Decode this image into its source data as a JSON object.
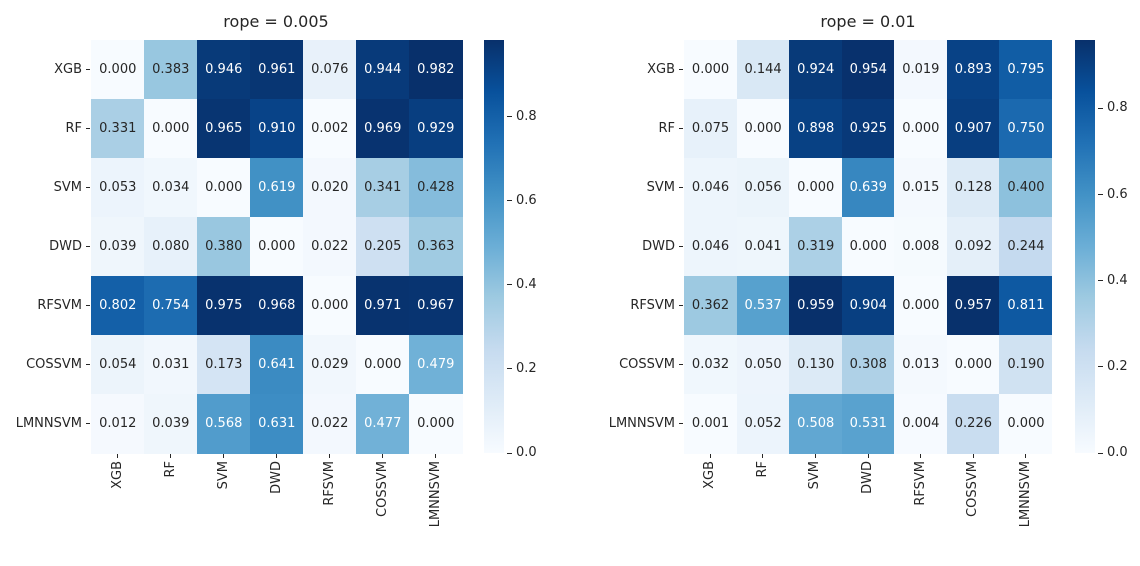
{
  "figure": {
    "background": "#ffffff",
    "colormap": {
      "name": "Blues",
      "stops": [
        "#f7fbff",
        "#deebf7",
        "#c6dbef",
        "#9ecae1",
        "#6baed6",
        "#4292c6",
        "#2171b5",
        "#08519c",
        "#08306b"
      ]
    },
    "colors": {
      "annotation_dark": "#262626",
      "annotation_light": "#ffffff",
      "tick_color": "#262626"
    }
  },
  "chart_data": [
    {
      "type": "heatmap",
      "title": "rope = 0.005",
      "x_categories": [
        "XGB",
        "RF",
        "SVM",
        "DWD",
        "RFSVM",
        "COSSVM",
        "LMNNSVM"
      ],
      "y_categories": [
        "XGB",
        "RF",
        "SVM",
        "DWD",
        "RFSVM",
        "COSSVM",
        "LMNNSVM"
      ],
      "values": [
        [
          0.0,
          0.383,
          0.946,
          0.961,
          0.076,
          0.944,
          0.982
        ],
        [
          0.331,
          0.0,
          0.965,
          0.91,
          0.002,
          0.969,
          0.929
        ],
        [
          0.053,
          0.034,
          0.0,
          0.619,
          0.02,
          0.341,
          0.428
        ],
        [
          0.039,
          0.08,
          0.38,
          0.0,
          0.022,
          0.205,
          0.363
        ],
        [
          0.802,
          0.754,
          0.975,
          0.968,
          0.0,
          0.971,
          0.967
        ],
        [
          0.054,
          0.031,
          0.173,
          0.641,
          0.029,
          0.0,
          0.479
        ],
        [
          0.012,
          0.039,
          0.568,
          0.631,
          0.022,
          0.477,
          0.0
        ]
      ],
      "vmin": 0.0,
      "vmax": 0.982,
      "value_decimals": 3,
      "colorbar_ticks": [
        0.0,
        0.2,
        0.4,
        0.6,
        0.8
      ],
      "colorbar_position": "right",
      "grid": false
    },
    {
      "type": "heatmap",
      "title": "rope = 0.01",
      "x_categories": [
        "XGB",
        "RF",
        "SVM",
        "DWD",
        "RFSVM",
        "COSSVM",
        "LMNNSVM"
      ],
      "y_categories": [
        "XGB",
        "RF",
        "SVM",
        "DWD",
        "RFSVM",
        "COSSVM",
        "LMNNSVM"
      ],
      "values": [
        [
          0.0,
          0.144,
          0.924,
          0.954,
          0.019,
          0.893,
          0.795
        ],
        [
          0.075,
          0.0,
          0.898,
          0.925,
          0.0,
          0.907,
          0.75
        ],
        [
          0.046,
          0.056,
          0.0,
          0.639,
          0.015,
          0.128,
          0.4
        ],
        [
          0.046,
          0.041,
          0.319,
          0.0,
          0.008,
          0.092,
          0.244
        ],
        [
          0.362,
          0.537,
          0.959,
          0.904,
          0.0,
          0.957,
          0.811
        ],
        [
          0.032,
          0.05,
          0.13,
          0.308,
          0.013,
          0.0,
          0.19
        ],
        [
          0.001,
          0.052,
          0.508,
          0.531,
          0.004,
          0.226,
          0.0
        ]
      ],
      "vmin": 0.0,
      "vmax": 0.959,
      "value_decimals": 3,
      "colorbar_ticks": [
        0.0,
        0.2,
        0.4,
        0.6,
        0.8
      ],
      "colorbar_position": "right",
      "grid": false
    }
  ]
}
